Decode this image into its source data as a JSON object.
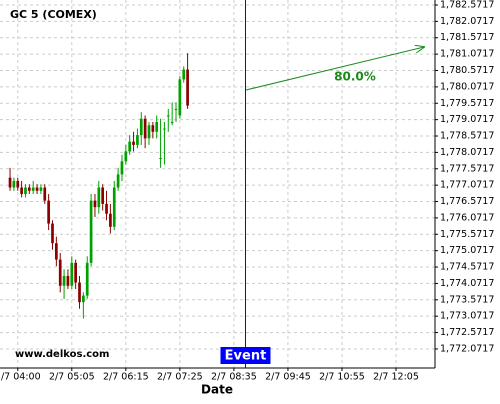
{
  "chart_data": {
    "type": "candlestick",
    "title": "GC 5 (COMEX)",
    "x_label": "Date",
    "watermark": "www.delkos.com",
    "event_label": "Event",
    "event_x": 61,
    "annotation": "80.0%",
    "up_color": "#00a000",
    "down_color": "#8b0000",
    "event_color": "#0000ff",
    "annotation_color": "#1a8a1a",
    "grid": true,
    "open": [
      1777.3,
      1777.0,
      1777.2,
      1777.0,
      1776.8,
      1777.0,
      1776.9,
      1777.0,
      1776.9,
      1777.0,
      1776.6,
      1775.9,
      1775.3,
      1774.8,
      1774.0,
      1774.3,
      1774.0,
      1774.7,
      1774.1,
      1773.5,
      1773.7,
      1774.7,
      1776.6,
      1776.4,
      1777.0,
      1776.5,
      1776.2,
      1775.8,
      1777.0,
      1777.4,
      1777.8,
      1778.1,
      1778.4,
      1778.3,
      1778.6,
      1779.1,
      1778.5,
      1778.9,
      1778.7,
      1777.9,
      1778.8,
      1779.2,
      1779.0,
      1779.4,
      1779.2,
      1780.3,
      1780.6
    ],
    "high": [
      1777.6,
      1777.3,
      1777.3,
      1777.2,
      1777.1,
      1777.1,
      1777.2,
      1777.1,
      1777.1,
      1777.1,
      1776.8,
      1776.0,
      1775.5,
      1775.0,
      1774.5,
      1774.5,
      1774.9,
      1774.8,
      1774.3,
      1773.8,
      1774.9,
      1776.8,
      1776.8,
      1777.2,
      1777.1,
      1776.9,
      1776.5,
      1777.2,
      1777.6,
      1778.0,
      1778.3,
      1778.6,
      1778.7,
      1778.8,
      1779.3,
      1779.2,
      1779.0,
      1779.0,
      1779.2,
      1779.1,
      1779.0,
      1779.4,
      1779.6,
      1779.6,
      1780.4,
      1780.7,
      1781.1
    ],
    "low": [
      1776.9,
      1776.9,
      1776.9,
      1776.7,
      1776.7,
      1776.8,
      1776.8,
      1776.8,
      1776.8,
      1776.5,
      1775.7,
      1775.1,
      1774.6,
      1773.8,
      1773.6,
      1773.9,
      1773.9,
      1773.9,
      1773.3,
      1773.0,
      1773.6,
      1774.6,
      1776.1,
      1776.2,
      1776.3,
      1776.0,
      1775.6,
      1775.7,
      1776.9,
      1777.2,
      1777.7,
      1778.0,
      1778.1,
      1778.2,
      1778.3,
      1778.2,
      1778.3,
      1778.5,
      1778.5,
      1777.6,
      1777.7,
      1778.7,
      1778.9,
      1779.0,
      1779.1,
      1780.2,
      1779.4
    ],
    "close": [
      1777.0,
      1777.2,
      1777.0,
      1776.8,
      1777.0,
      1776.9,
      1777.0,
      1776.9,
      1777.0,
      1776.6,
      1775.9,
      1775.3,
      1774.8,
      1774.0,
      1774.3,
      1774.0,
      1774.7,
      1774.1,
      1773.5,
      1773.7,
      1774.7,
      1776.6,
      1776.4,
      1777.0,
      1776.5,
      1776.2,
      1775.8,
      1777.0,
      1777.4,
      1777.8,
      1778.1,
      1778.4,
      1778.3,
      1778.6,
      1779.1,
      1778.5,
      1778.9,
      1778.7,
      1779.0,
      1777.9,
      1778.8,
      1779.2,
      1779.0,
      1779.4,
      1780.3,
      1780.6,
      1779.5
    ],
    "xlim": [
      -2.6,
      110.1
    ],
    "xticks": [
      {
        "value": 2,
        "label": "2/7 04:00"
      },
      {
        "value": 16,
        "label": "2/7 05:05"
      },
      {
        "value": 30,
        "label": "2/7 06:15"
      },
      {
        "value": 44,
        "label": "2/7 07:25"
      },
      {
        "value": 58,
        "label": "2/7 08:35"
      },
      {
        "value": 72,
        "label": "2/7 09:45"
      },
      {
        "value": 86,
        "label": "2/7 10:55"
      },
      {
        "value": 100,
        "label": "2/7 12:05"
      }
    ],
    "ylim": [
      1771.49,
      1782.724
    ],
    "yticks": [
      {
        "value": 1772.0717,
        "label": "1,772.0717"
      },
      {
        "value": 1772.5717,
        "label": "1,772.5717"
      },
      {
        "value": 1773.0717,
        "label": "1,773.0717"
      },
      {
        "value": 1773.5717,
        "label": "1,773.5717"
      },
      {
        "value": 1774.0717,
        "label": "1,774.0717"
      },
      {
        "value": 1774.5717,
        "label": "1,774.5717"
      },
      {
        "value": 1775.0717,
        "label": "1,775.0717"
      },
      {
        "value": 1775.5717,
        "label": "1,775.5717"
      },
      {
        "value": 1776.0717,
        "label": "1,776.0717"
      },
      {
        "value": 1776.5717,
        "label": "1,776.5717"
      },
      {
        "value": 1777.0717,
        "label": "1,777.0717"
      },
      {
        "value": 1777.5717,
        "label": "1,777.5717"
      },
      {
        "value": 1778.0717,
        "label": "1,778.0717"
      },
      {
        "value": 1778.5717,
        "label": "1,778.5717"
      },
      {
        "value": 1779.0717,
        "label": "1,779.0717"
      },
      {
        "value": 1779.5717,
        "label": "1,779.5717"
      },
      {
        "value": 1780.0717,
        "label": "1,780.0717"
      },
      {
        "value": 1780.5717,
        "label": "1,780.5717"
      },
      {
        "value": 1781.0717,
        "label": "1,781.0717"
      },
      {
        "value": 1781.5717,
        "label": "1,781.5717"
      },
      {
        "value": 1782.0717,
        "label": "1,782.0717"
      },
      {
        "value": 1782.5717,
        "label": "1,782.5717"
      }
    ]
  }
}
